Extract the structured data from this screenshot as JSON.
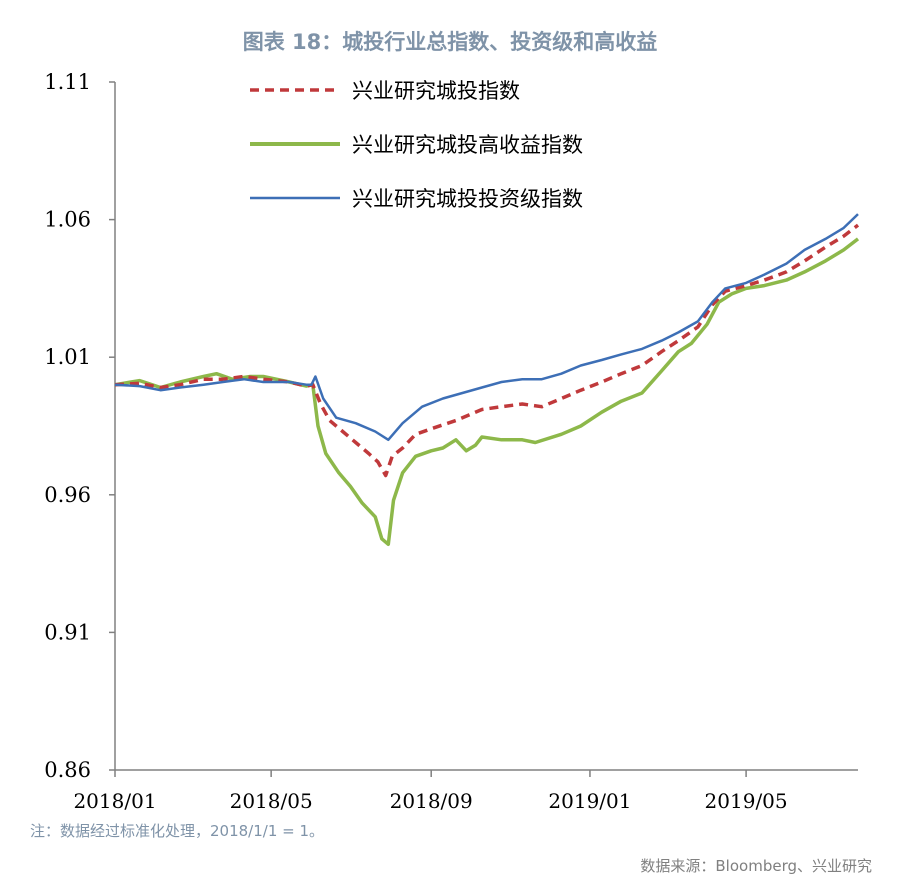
{
  "title": "图表 18：城投行业总指数、投资级和高收益",
  "note": "注：数据经过标准化处理，2018/1/1 = 1。",
  "source": "数据来源：Bloomberg、兴业研究",
  "chart_data": {
    "type": "line",
    "ylim": [
      0.86,
      1.11
    ],
    "yticks": [
      "0.86",
      "0.91",
      "0.96",
      "1.01",
      "1.06",
      "1.11"
    ],
    "xticks": [
      "2018/01",
      "2018/05",
      "2018/09",
      "2019/01",
      "2019/05"
    ],
    "x_range": [
      "2018-01-01",
      "2019-07-26"
    ],
    "grid": false,
    "legend_position": "top-left",
    "series": [
      {
        "name": "兴业研究城投指数",
        "color": "#c0393b",
        "style": "dashed",
        "points": [
          [
            "2018-01-01",
            1.0
          ],
          [
            "2018-01-20",
            1.0005
          ],
          [
            "2018-02-05",
            0.999
          ],
          [
            "2018-02-20",
            1.0
          ],
          [
            "2018-03-10",
            1.002
          ],
          [
            "2018-03-25",
            1.002
          ],
          [
            "2018-04-10",
            1.003
          ],
          [
            "2018-04-25",
            1.002
          ],
          [
            "2018-05-15",
            1.001
          ],
          [
            "2018-05-28",
            0.9995
          ],
          [
            "2018-06-02",
            1.0
          ],
          [
            "2018-06-08",
            0.993
          ],
          [
            "2018-06-15",
            0.987
          ],
          [
            "2018-06-25",
            0.983
          ],
          [
            "2018-07-05",
            0.979
          ],
          [
            "2018-07-15",
            0.975
          ],
          [
            "2018-07-22",
            0.972
          ],
          [
            "2018-07-28",
            0.967
          ],
          [
            "2018-08-02",
            0.974
          ],
          [
            "2018-08-10",
            0.977
          ],
          [
            "2018-08-20",
            0.982
          ],
          [
            "2018-09-01",
            0.984
          ],
          [
            "2018-09-20",
            0.987
          ],
          [
            "2018-10-10",
            0.991
          ],
          [
            "2018-10-25",
            0.992
          ],
          [
            "2018-11-10",
            0.993
          ],
          [
            "2018-11-25",
            0.992
          ],
          [
            "2018-12-10",
            0.995
          ],
          [
            "2018-12-25",
            0.998
          ],
          [
            "2019-01-10",
            1.001
          ],
          [
            "2019-01-25",
            1.004
          ],
          [
            "2019-02-10",
            1.007
          ],
          [
            "2019-02-25",
            1.012
          ],
          [
            "2019-03-10",
            1.016
          ],
          [
            "2019-03-25",
            1.021
          ],
          [
            "2019-04-05",
            1.029
          ],
          [
            "2019-04-15",
            1.034
          ],
          [
            "2019-05-01",
            1.036
          ],
          [
            "2019-05-15",
            1.038
          ],
          [
            "2019-06-01",
            1.041
          ],
          [
            "2019-06-15",
            1.045
          ],
          [
            "2019-07-01",
            1.05
          ],
          [
            "2019-07-15",
            1.054
          ],
          [
            "2019-07-26",
            1.058
          ]
        ]
      },
      {
        "name": "兴业研究城投高收益指数",
        "color": "#8db84a",
        "style": "solid",
        "points": [
          [
            "2018-01-01",
            1.0
          ],
          [
            "2018-01-20",
            1.0015
          ],
          [
            "2018-02-05",
            0.999
          ],
          [
            "2018-02-20",
            1.001
          ],
          [
            "2018-03-10",
            1.003
          ],
          [
            "2018-03-20",
            1.004
          ],
          [
            "2018-04-01",
            1.002
          ],
          [
            "2018-04-15",
            1.003
          ],
          [
            "2018-04-25",
            1.003
          ],
          [
            "2018-05-15",
            1.001
          ],
          [
            "2018-05-28",
            0.9995
          ],
          [
            "2018-06-02",
            1.0
          ],
          [
            "2018-06-06",
            0.985
          ],
          [
            "2018-06-12",
            0.975
          ],
          [
            "2018-06-22",
            0.968
          ],
          [
            "2018-07-01",
            0.963
          ],
          [
            "2018-07-10",
            0.957
          ],
          [
            "2018-07-20",
            0.952
          ],
          [
            "2018-07-25",
            0.944
          ],
          [
            "2018-07-30",
            0.942
          ],
          [
            "2018-08-03",
            0.958
          ],
          [
            "2018-08-10",
            0.968
          ],
          [
            "2018-08-20",
            0.974
          ],
          [
            "2018-09-01",
            0.976
          ],
          [
            "2018-09-10",
            0.977
          ],
          [
            "2018-09-20",
            0.98
          ],
          [
            "2018-09-28",
            0.976
          ],
          [
            "2018-10-05",
            0.978
          ],
          [
            "2018-10-10",
            0.981
          ],
          [
            "2018-10-25",
            0.98
          ],
          [
            "2018-11-10",
            0.98
          ],
          [
            "2018-11-20",
            0.979
          ],
          [
            "2018-12-10",
            0.982
          ],
          [
            "2018-12-25",
            0.985
          ],
          [
            "2019-01-10",
            0.99
          ],
          [
            "2019-01-25",
            0.994
          ],
          [
            "2019-02-10",
            0.997
          ],
          [
            "2019-02-25",
            1.005
          ],
          [
            "2019-03-10",
            1.012
          ],
          [
            "2019-03-20",
            1.015
          ],
          [
            "2019-04-01",
            1.022
          ],
          [
            "2019-04-10",
            1.03
          ],
          [
            "2019-04-20",
            1.033
          ],
          [
            "2019-05-01",
            1.035
          ],
          [
            "2019-05-15",
            1.036
          ],
          [
            "2019-06-01",
            1.038
          ],
          [
            "2019-06-15",
            1.041
          ],
          [
            "2019-07-01",
            1.045
          ],
          [
            "2019-07-15",
            1.049
          ],
          [
            "2019-07-26",
            1.053
          ]
        ]
      },
      {
        "name": "兴业研究城投投资级指数",
        "color": "#3d6fb6",
        "style": "solid",
        "points": [
          [
            "2018-01-01",
            1.0
          ],
          [
            "2018-01-20",
            0.9995
          ],
          [
            "2018-02-05",
            0.998
          ],
          [
            "2018-02-20",
            0.999
          ],
          [
            "2018-03-10",
            1.0
          ],
          [
            "2018-03-25",
            1.001
          ],
          [
            "2018-04-10",
            1.002
          ],
          [
            "2018-04-25",
            1.001
          ],
          [
            "2018-05-15",
            1.001
          ],
          [
            "2018-05-28",
            1.0
          ],
          [
            "2018-06-01",
            1.0
          ],
          [
            "2018-06-04",
            1.003
          ],
          [
            "2018-06-10",
            0.995
          ],
          [
            "2018-06-20",
            0.988
          ],
          [
            "2018-07-05",
            0.986
          ],
          [
            "2018-07-20",
            0.983
          ],
          [
            "2018-07-30",
            0.98
          ],
          [
            "2018-08-10",
            0.986
          ],
          [
            "2018-08-25",
            0.992
          ],
          [
            "2018-09-10",
            0.995
          ],
          [
            "2018-09-25",
            0.997
          ],
          [
            "2018-10-10",
            0.999
          ],
          [
            "2018-10-25",
            1.001
          ],
          [
            "2018-11-10",
            1.002
          ],
          [
            "2018-11-25",
            1.002
          ],
          [
            "2018-12-10",
            1.004
          ],
          [
            "2018-12-25",
            1.007
          ],
          [
            "2019-01-10",
            1.009
          ],
          [
            "2019-01-25",
            1.011
          ],
          [
            "2019-02-10",
            1.013
          ],
          [
            "2019-02-25",
            1.016
          ],
          [
            "2019-03-10",
            1.019
          ],
          [
            "2019-03-25",
            1.023
          ],
          [
            "2019-04-05",
            1.03
          ],
          [
            "2019-04-15",
            1.035
          ],
          [
            "2019-05-01",
            1.037
          ],
          [
            "2019-05-15",
            1.04
          ],
          [
            "2019-06-01",
            1.044
          ],
          [
            "2019-06-15",
            1.049
          ],
          [
            "2019-07-01",
            1.053
          ],
          [
            "2019-07-15",
            1.057
          ],
          [
            "2019-07-26",
            1.062
          ]
        ]
      }
    ]
  }
}
